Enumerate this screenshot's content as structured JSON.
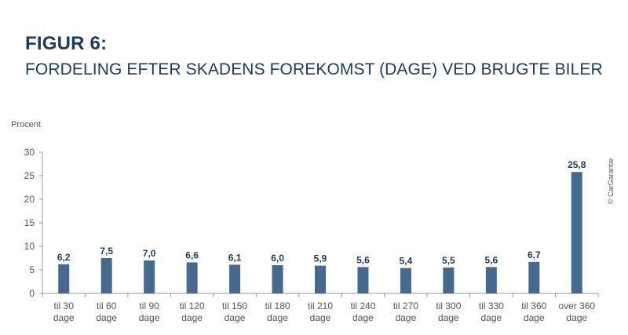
{
  "header": {
    "figure_label": "FIGUR 6:",
    "title": "FORDELING EFTER SKADENS FOREKOMST (DAGE) VED BRUGTE BILER"
  },
  "copyright": "© CarGarantie",
  "colors": {
    "bar": "#46698e",
    "title": "#1d3a5f",
    "value_label": "#1d3a5f",
    "axis": "#999999",
    "text": "#555555"
  },
  "chart_data": {
    "type": "bar",
    "ylabel": "Procent",
    "ylim": [
      0,
      30
    ],
    "yticks": [
      "0",
      "5",
      "10",
      "15",
      "20",
      "25",
      "30"
    ],
    "grid": false,
    "categories": [
      [
        "til 30",
        "dage"
      ],
      [
        "til 60",
        "dage"
      ],
      [
        "til 90",
        "dage"
      ],
      [
        "til 120",
        "dage"
      ],
      [
        "til 150",
        "dage"
      ],
      [
        "til 180",
        "dage"
      ],
      [
        "til 210",
        "dage"
      ],
      [
        "til 240",
        "dage"
      ],
      [
        "til 270",
        "dage"
      ],
      [
        "til 300",
        "dage"
      ],
      [
        "til 330",
        "dage"
      ],
      [
        "til 360",
        "dage"
      ],
      [
        "over 360",
        "dage"
      ]
    ],
    "values": [
      6.2,
      7.5,
      7.0,
      6.6,
      6.1,
      6.0,
      5.9,
      5.6,
      5.4,
      5.5,
      5.6,
      6.7,
      25.8
    ],
    "value_labels": [
      "6,2",
      "7,5",
      "7,0",
      "6,6",
      "6,1",
      "6,0",
      "5,9",
      "5,6",
      "5,4",
      "5,5",
      "5,6",
      "6,7",
      "25,8"
    ]
  }
}
